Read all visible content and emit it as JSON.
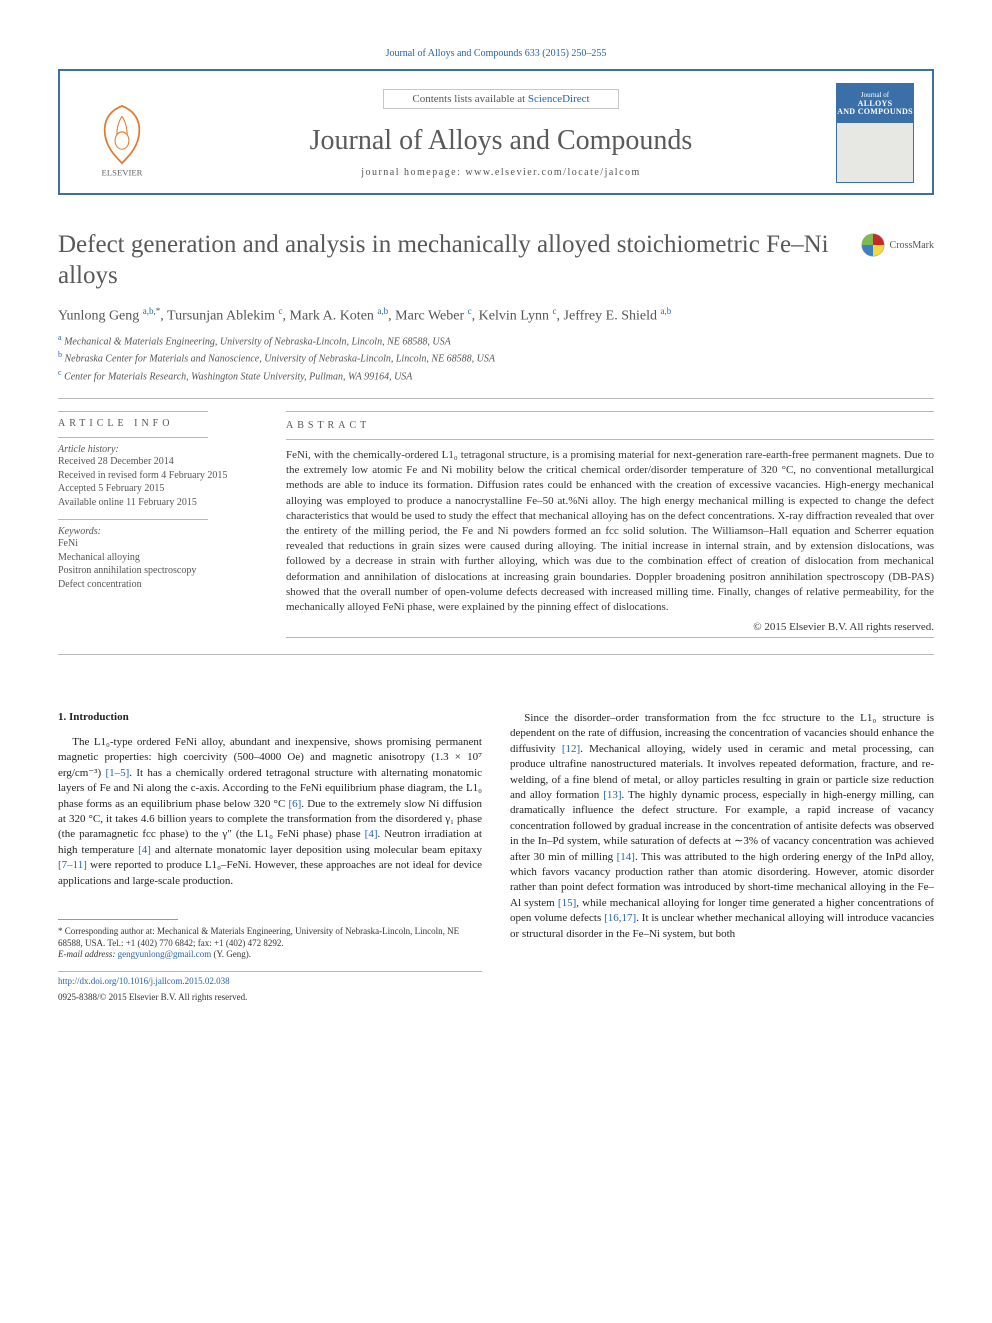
{
  "header_citation": "Journal of Alloys and Compounds 633 (2015) 250–255",
  "masthead": {
    "contents_prefix": "Contents lists available at ",
    "contents_link": "ScienceDirect",
    "journal_title": "Journal of Alloys and Compounds",
    "homepage_label": "journal homepage: www.elsevier.com/locate/jalcom",
    "cover_line1": "Journal of",
    "cover_line2": "ALLOYS",
    "cover_line3": "AND COMPOUNDS"
  },
  "crossmark_label": "CrossMark",
  "article_title": "Defect generation and analysis in mechanically alloyed stoichiometric Fe–Ni alloys",
  "authors_html": "Yunlong Geng <sup>a,b,</sup><sup class='star'>*</sup>, Tursunjan Ablekim <sup>c</sup>, Mark A. Koten <sup>a,b</sup>, Marc Weber <sup>c</sup>, Kelvin Lynn <sup>c</sup>, Jeffrey E. Shield <sup>a,b</sup>",
  "affiliations": {
    "a": "Mechanical & Materials Engineering, University of Nebraska-Lincoln, Lincoln, NE 68588, USA",
    "b": "Nebraska Center for Materials and Nanoscience, University of Nebraska-Lincoln, Lincoln, NE 68588, USA",
    "c": "Center for Materials Research, Washington State University, Pullman, WA 99164, USA"
  },
  "info": {
    "heading": "ARTICLE INFO",
    "history_label": "Article history:",
    "history": [
      "Received 28 December 2014",
      "Received in revised form 4 February 2015",
      "Accepted 5 February 2015",
      "Available online 11 February 2015"
    ],
    "keywords_label": "Keywords:",
    "keywords": [
      "FeNi",
      "Mechanical alloying",
      "Positron annihilation spectroscopy",
      "Defect concentration"
    ]
  },
  "abstract": {
    "heading": "ABSTRACT",
    "text": "FeNi, with the chemically-ordered L1₀ tetragonal structure, is a promising material for next-generation rare-earth-free permanent magnets. Due to the extremely low atomic Fe and Ni mobility below the critical chemical order/disorder temperature of 320 °C, no conventional metallurgical methods are able to induce its formation. Diffusion rates could be enhanced with the creation of excessive vacancies. High-energy mechanical alloying was employed to produce a nanocrystalline Fe–50 at.%Ni alloy. The high energy mechanical milling is expected to change the defect characteristics that would be used to study the effect that mechanical alloying has on the defect concentrations. X-ray diffraction revealed that over the entirety of the milling period, the Fe and Ni powders formed an fcc solid solution. The Williamson–Hall equation and Scherrer equation revealed that reductions in grain sizes were caused during alloying. The initial increase in internal strain, and by extension dislocations, was followed by a decrease in strain with further alloying, which was due to the combination effect of creation of dislocation from mechanical deformation and annihilation of dislocations at increasing grain boundaries. Doppler broadening positron annihilation spectroscopy (DB-PAS) showed that the overall number of open-volume defects decreased with increased milling time. Finally, changes of relative permeability, for the mechanically alloyed FeNi phase, were explained by the pinning effect of dislocations.",
    "copyright": "© 2015 Elsevier B.V. All rights reserved."
  },
  "body": {
    "section_heading": "1. Introduction",
    "col1_html": "The L1₀-type ordered FeNi alloy, abundant and inexpensive, shows promising permanent magnetic properties: high coercivity (500–4000 Oe) and magnetic anisotropy (1.3 × 10⁷ erg/cm⁻³) <span class='ref-link'>[1–5]</span>. It has a chemically ordered tetragonal structure with alternating monatomic layers of Fe and Ni along the c-axis. According to the FeNi equilibrium phase diagram, the L1₀ phase forms as an equilibrium phase below 320 °C <span class='ref-link'>[6]</span>. Due to the extremely slow Ni diffusion at 320 °C, it takes 4.6 billion years to complete the transformation from the disordered γ₁ phase (the paramagnetic fcc phase) to the γ″ (the L1₀ FeNi phase) phase <span class='ref-link'>[4]</span>. Neutron irradiation at high temperature <span class='ref-link'>[4]</span> and alternate monatomic layer deposition using molecular beam epitaxy <span class='ref-link'>[7–11]</span> were reported to produce L1₀–FeNi. However, these approaches are not ideal for device applications and large-scale production.",
    "col2_html": "Since the disorder–order transformation from the fcc structure to the L1₀ structure is dependent on the rate of diffusion, increasing the concentration of vacancies should enhance the diffusivity <span class='ref-link'>[12]</span>. Mechanical alloying, widely used in ceramic and metal processing, can produce ultrafine nanostructured materials. It involves repeated deformation, fracture, and re-welding, of a fine blend of metal, or alloy particles resulting in grain or particle size reduction and alloy formation <span class='ref-link'>[13]</span>. The highly dynamic process, especially in high-energy milling, can dramatically influence the defect structure. For example, a rapid increase of vacancy concentration followed by gradual increase in the concentration of antisite defects was observed in the In–Pd system, while saturation of defects at ∼3% of vacancy concentration was achieved after 30 min of milling <span class='ref-link'>[14]</span>. This was attributed to the high ordering energy of the InPd alloy, which favors vacancy production rather than atomic disordering. However, atomic disorder rather than point defect formation was introduced by short-time mechanical alloying in the Fe–Al system <span class='ref-link'>[15]</span>, while mechanical alloying for longer time generated a higher concentrations of open volume defects <span class='ref-link'>[16,17]</span>. It is unclear whether mechanical alloying will introduce vacancies or structural disorder in the Fe–Ni system, but both"
  },
  "footnote": {
    "corr": "Corresponding author at: Mechanical & Materials Engineering, University of Nebraska-Lincoln, Lincoln, NE 68588, USA. Tel.: +1 (402) 770 6842; fax: +1 (402) 472 8292.",
    "email_label": "E-mail address:",
    "email": "gengyunlong@gmail.com",
    "email_author": "(Y. Geng)."
  },
  "footer": {
    "doi": "http://dx.doi.org/10.1016/j.jallcom.2015.02.038",
    "copyright": "0925-8388/© 2015 Elsevier B.V. All rights reserved."
  },
  "colors": {
    "link": "#2563a8",
    "rule": "#b8b8b8",
    "text": "#333333",
    "muted": "#555555",
    "border": "#3a6fa8"
  }
}
